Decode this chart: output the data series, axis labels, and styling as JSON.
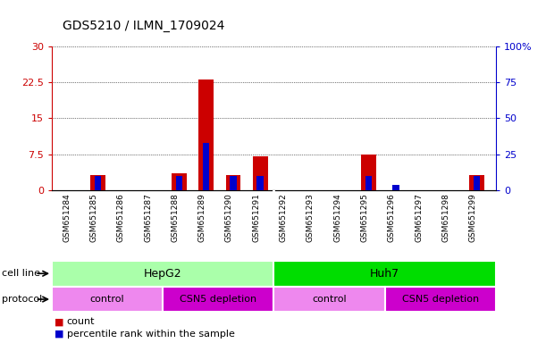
{
  "title": "GDS5210 / ILMN_1709024",
  "samples": [
    "GSM651284",
    "GSM651285",
    "GSM651286",
    "GSM651287",
    "GSM651288",
    "GSM651289",
    "GSM651290",
    "GSM651291",
    "GSM651292",
    "GSM651293",
    "GSM651294",
    "GSM651295",
    "GSM651296",
    "GSM651297",
    "GSM651298",
    "GSM651299"
  ],
  "count_values": [
    0,
    3.2,
    0,
    0,
    3.5,
    23.0,
    3.2,
    7.0,
    0,
    0,
    0,
    7.5,
    0,
    0,
    0,
    3.2
  ],
  "percentile_values": [
    0,
    10,
    0,
    0,
    10,
    33,
    10,
    10,
    0,
    0,
    0,
    10,
    4,
    0,
    0,
    10
  ],
  "count_color": "#cc0000",
  "percentile_color": "#0000cc",
  "ylim_left": [
    0,
    30
  ],
  "ylim_right": [
    0,
    100
  ],
  "yticks_left": [
    0,
    7.5,
    15,
    22.5,
    30
  ],
  "yticks_right": [
    0,
    25,
    50,
    75,
    100
  ],
  "ytick_labels_left": [
    "0",
    "7.5",
    "15",
    "22.5",
    "30"
  ],
  "ytick_labels_right": [
    "0",
    "25",
    "50",
    "75",
    "100%"
  ],
  "grid_color": "black",
  "bg_color": "white",
  "plot_bg_color": "white",
  "xtick_bg_color": "#d3d3d3",
  "cell_line_row": [
    {
      "label": "HepG2",
      "start": 0,
      "end": 8,
      "color": "#aaffaa"
    },
    {
      "label": "Huh7",
      "start": 8,
      "end": 16,
      "color": "#00dd00"
    }
  ],
  "protocol_row": [
    {
      "label": "control",
      "start": 0,
      "end": 4,
      "color": "#ee88ee"
    },
    {
      "label": "CSN5 depletion",
      "start": 4,
      "end": 8,
      "color": "#cc00cc"
    },
    {
      "label": "control",
      "start": 8,
      "end": 12,
      "color": "#ee88ee"
    },
    {
      "label": "CSN5 depletion",
      "start": 12,
      "end": 16,
      "color": "#cc00cc"
    }
  ],
  "legend_count_label": "count",
  "legend_percentile_label": "percentile rank within the sample",
  "cell_line_label": "cell line",
  "protocol_label": "protocol",
  "bar_width": 0.55,
  "pct_bar_width": 0.25
}
